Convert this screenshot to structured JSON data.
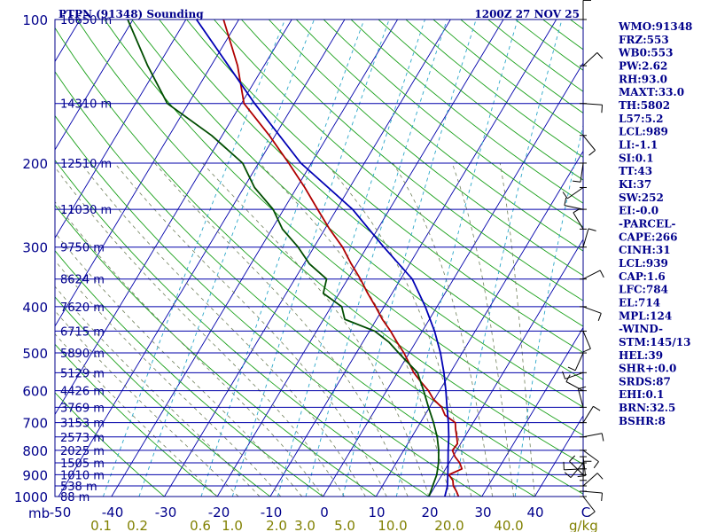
{
  "chart_data": {
    "type": "line",
    "title_left": "PTPN (91348) Sounding",
    "title_right": "1200Z 27 NOV 25",
    "y_axis_unit": "mb",
    "x_axis_unit": "g/kg",
    "pressure_levels": [
      100,
      200,
      300,
      400,
      500,
      600,
      700,
      800,
      900,
      1000
    ],
    "heights": [
      {
        "p": 100,
        "label": "16650 m"
      },
      {
        "p": 150,
        "label": "14310 m"
      },
      {
        "p": 200,
        "label": "12510 m"
      },
      {
        "p": 250,
        "label": "11030 m"
      },
      {
        "p": 300,
        "label": "9750 m"
      },
      {
        "p": 350,
        "label": "8624 m"
      },
      {
        "p": 400,
        "label": "7620 m"
      },
      {
        "p": 450,
        "label": "6715 m"
      },
      {
        "p": 500,
        "label": "5890 m"
      },
      {
        "p": 550,
        "label": "5129 m"
      },
      {
        "p": 600,
        "label": "4426 m"
      },
      {
        "p": 650,
        "label": "3769 m"
      },
      {
        "p": 700,
        "label": "3153 m"
      },
      {
        "p": 750,
        "label": "2573 m"
      },
      {
        "p": 800,
        "label": "2025 m"
      },
      {
        "p": 850,
        "label": "1505 m"
      },
      {
        "p": 900,
        "label": "1010 m"
      },
      {
        "p": 950,
        "label": "538 m"
      },
      {
        "p": 1000,
        "label": "88 m"
      }
    ],
    "temp_ticks": [
      "-50",
      "-40",
      "-30",
      "-20",
      "-10",
      "0",
      "10",
      "20",
      "30",
      "40",
      "C"
    ],
    "mixing_ratio_ticks": [
      "0.1",
      "0.2",
      "0.6",
      "1.0",
      "2.0",
      "3.0",
      "5.0",
      "10.0",
      "20.0",
      "40.0"
    ],
    "series": [
      {
        "name": "Temperature",
        "color": "#b00000",
        "points": [
          [
            1000,
            25.6
          ],
          [
            975,
            24.6
          ],
          [
            950,
            23.4
          ],
          [
            925,
            22.7
          ],
          [
            900,
            21.3
          ],
          [
            875,
            23.1
          ],
          [
            850,
            22.0
          ],
          [
            825,
            20.4
          ],
          [
            800,
            19.2
          ],
          [
            775,
            19.4
          ],
          [
            750,
            18.5
          ],
          [
            725,
            17.5
          ],
          [
            700,
            16.6
          ],
          [
            675,
            13.8
          ],
          [
            650,
            12.3
          ],
          [
            625,
            9.8
          ],
          [
            600,
            7.9
          ],
          [
            575,
            5.5
          ],
          [
            550,
            3.1
          ],
          [
            525,
            1.1
          ],
          [
            500,
            -1.0
          ],
          [
            475,
            -3.5
          ],
          [
            450,
            -6.0
          ],
          [
            425,
            -8.9
          ],
          [
            400,
            -11.6
          ],
          [
            375,
            -14.6
          ],
          [
            350,
            -17.6
          ],
          [
            325,
            -21.1
          ],
          [
            300,
            -24.6
          ],
          [
            275,
            -29.1
          ],
          [
            250,
            -33.6
          ],
          [
            225,
            -38.5
          ],
          [
            200,
            -44.3
          ],
          [
            175,
            -51.1
          ],
          [
            150,
            -59.5
          ],
          [
            125,
            -65.0
          ],
          [
            100,
            -72.9
          ]
        ]
      },
      {
        "name": "Dewpoint",
        "color": "#004d00",
        "points": [
          [
            1000,
            20.0
          ],
          [
            950,
            19.5
          ],
          [
            900,
            19.0
          ],
          [
            850,
            18.0
          ],
          [
            800,
            16.6
          ],
          [
            750,
            14.8
          ],
          [
            700,
            12.5
          ],
          [
            650,
            9.8
          ],
          [
            600,
            7.0
          ],
          [
            550,
            3.8
          ],
          [
            500,
            -2.0
          ],
          [
            475,
            -5.0
          ],
          [
            450,
            -9.0
          ],
          [
            425,
            -16.0
          ],
          [
            400,
            -18.0
          ],
          [
            375,
            -23.0
          ],
          [
            350,
            -24.0
          ],
          [
            325,
            -29.0
          ],
          [
            300,
            -33.0
          ],
          [
            275,
            -38.0
          ],
          [
            250,
            -42.0
          ],
          [
            225,
            -48.0
          ],
          [
            200,
            -53.0
          ],
          [
            175,
            -62.0
          ],
          [
            150,
            -74.0
          ],
          [
            125,
            -82.0
          ],
          [
            100,
            -91.0
          ]
        ]
      },
      {
        "name": "Parcel",
        "color": "#0000b4",
        "points": [
          [
            1000,
            23.0
          ],
          [
            950,
            22.3
          ],
          [
            900,
            21.1
          ],
          [
            850,
            19.8
          ],
          [
            800,
            18.4
          ],
          [
            750,
            17.0
          ],
          [
            700,
            15.3
          ],
          [
            650,
            13.3
          ],
          [
            600,
            11.2
          ],
          [
            550,
            8.8
          ],
          [
            500,
            5.9
          ],
          [
            450,
            2.3
          ],
          [
            400,
            -2.2
          ],
          [
            350,
            -7.8
          ],
          [
            300,
            -16.8
          ],
          [
            250,
            -27.0
          ],
          [
            200,
            -42.0
          ],
          [
            150,
            -57.5
          ],
          [
            100,
            -78.0
          ]
        ]
      }
    ]
  },
  "indices": [
    "WMO:91348",
    "FRZ:553",
    "WB0:553",
    "PW:2.62",
    "RH:93.0",
    "MAXT:33.0",
    "TH:5802",
    "L57:5.2",
    "LCL:989",
    "LI:-1.1",
    "SI:0.1",
    "TT:43",
    "KI:37",
    "SW:252",
    "EI:-0.0",
    "-PARCEL-",
    "CAPE:266",
    "CINH:31",
    "LCL:939",
    "CAP:1.6",
    "LFC:784",
    "EL:714",
    "MPL:124",
    "-WIND-",
    "STM:145/13",
    "HEL:39",
    "SHR+:0.0",
    "SRDS:87",
    "EHI:0.1",
    "BRN:32.5",
    "BSHR:8"
  ]
}
